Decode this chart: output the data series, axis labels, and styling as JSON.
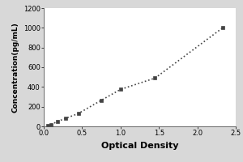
{
  "x_data": [
    0.05,
    0.1,
    0.18,
    0.28,
    0.45,
    0.75,
    1.0,
    1.45,
    2.33
  ],
  "y_data": [
    5,
    20,
    50,
    80,
    130,
    265,
    375,
    490,
    1000
  ],
  "xlabel": "Optical Density",
  "ylabel": "Concentration(pg/mL)",
  "xlim": [
    0,
    2.5
  ],
  "ylim": [
    0,
    1200
  ],
  "xticks": [
    0,
    0.5,
    1,
    1.5,
    2,
    2.5
  ],
  "yticks": [
    0,
    200,
    400,
    600,
    800,
    1000,
    1200
  ],
  "background_color": "#d8d8d8",
  "plot_bg_color": "#ffffff",
  "line_color": "#444444",
  "marker_color": "#444444",
  "marker_style": "s",
  "marker_size": 2.5,
  "line_style": ":",
  "line_width": 1.2,
  "xlabel_fontsize": 8,
  "ylabel_fontsize": 6.5,
  "tick_fontsize": 6,
  "xlabel_fontweight": "bold",
  "ylabel_fontweight": "bold"
}
